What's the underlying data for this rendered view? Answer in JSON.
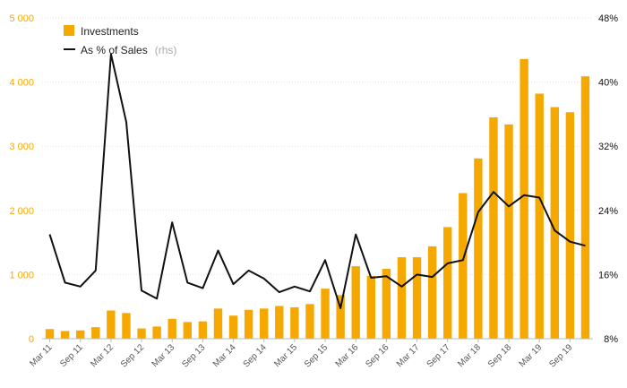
{
  "chart_data": {
    "type": "bar+line",
    "categories": [
      "Mar 11",
      "Jun 11",
      "Sep 11",
      "Dec 11",
      "Mar 12",
      "Jun 12",
      "Sep 12",
      "Dec 12",
      "Mar 13",
      "Jun 13",
      "Sep 13",
      "Dec 13",
      "Mar 14",
      "Jun 14",
      "Sep 14",
      "Dec 14",
      "Mar 15",
      "Jun 15",
      "Sep 15",
      "Dec 15",
      "Mar 16",
      "Jun 16",
      "Sep 16",
      "Dec 16",
      "Mar 17",
      "Jun 17",
      "Sep 17",
      "Dec 17",
      "Mar 18",
      "Jun 18",
      "Sep 18",
      "Dec 18",
      "Mar 19",
      "Jun 19",
      "Sep 19",
      "Dec 19"
    ],
    "x_tick_labels": [
      "Mar 11",
      "Sep 11",
      "Mar 12",
      "Sep 12",
      "Mar 13",
      "Sep 13",
      "Mar 14",
      "Sep 14",
      "Mar 15",
      "Sep 15",
      "Mar 16",
      "Sep 16",
      "Mar 17",
      "Sep 17",
      "Mar 18",
      "Sep 18",
      "Mar 19",
      "Sep 19"
    ],
    "series": [
      {
        "name": "Investments",
        "type": "bar",
        "axis": "left",
        "values": [
          150,
          120,
          130,
          180,
          440,
          400,
          160,
          190,
          310,
          260,
          270,
          470,
          360,
          450,
          470,
          510,
          490,
          540,
          780,
          680,
          1130,
          980,
          1090,
          1270,
          1270,
          1440,
          1740,
          2270,
          2810,
          3450,
          3340,
          4360,
          3820,
          3610,
          3530,
          4090
        ]
      },
      {
        "name": "As % of Sales",
        "note": "(rhs)",
        "type": "line",
        "axis": "right",
        "values": [
          21.0,
          15.0,
          14.5,
          16.5,
          43.5,
          35.0,
          14.0,
          13.0,
          22.5,
          15.0,
          14.3,
          19.0,
          14.8,
          16.5,
          15.5,
          13.8,
          14.5,
          13.9,
          17.8,
          11.8,
          21.0,
          15.6,
          15.8,
          14.5,
          16.0,
          15.7,
          17.4,
          17.8,
          23.8,
          26.3,
          24.5,
          25.9,
          25.6,
          21.5,
          20.1,
          19.6
        ]
      }
    ],
    "y_left": {
      "ticks": [
        "0",
        "1 000",
        "2 000",
        "3 000",
        "4 000",
        "5 000"
      ],
      "range": [
        0,
        5000
      ]
    },
    "y_right": {
      "ticks": [
        "8%",
        "16%",
        "24%",
        "32%",
        "40%",
        "48%"
      ],
      "range": [
        8,
        48
      ]
    },
    "legend_placement": "top-left",
    "grid": true,
    "colors": {
      "bar": "#f5a800",
      "line": "#111111",
      "left_axis_text": "#f5a800",
      "grid": "#e3e3e3"
    }
  }
}
